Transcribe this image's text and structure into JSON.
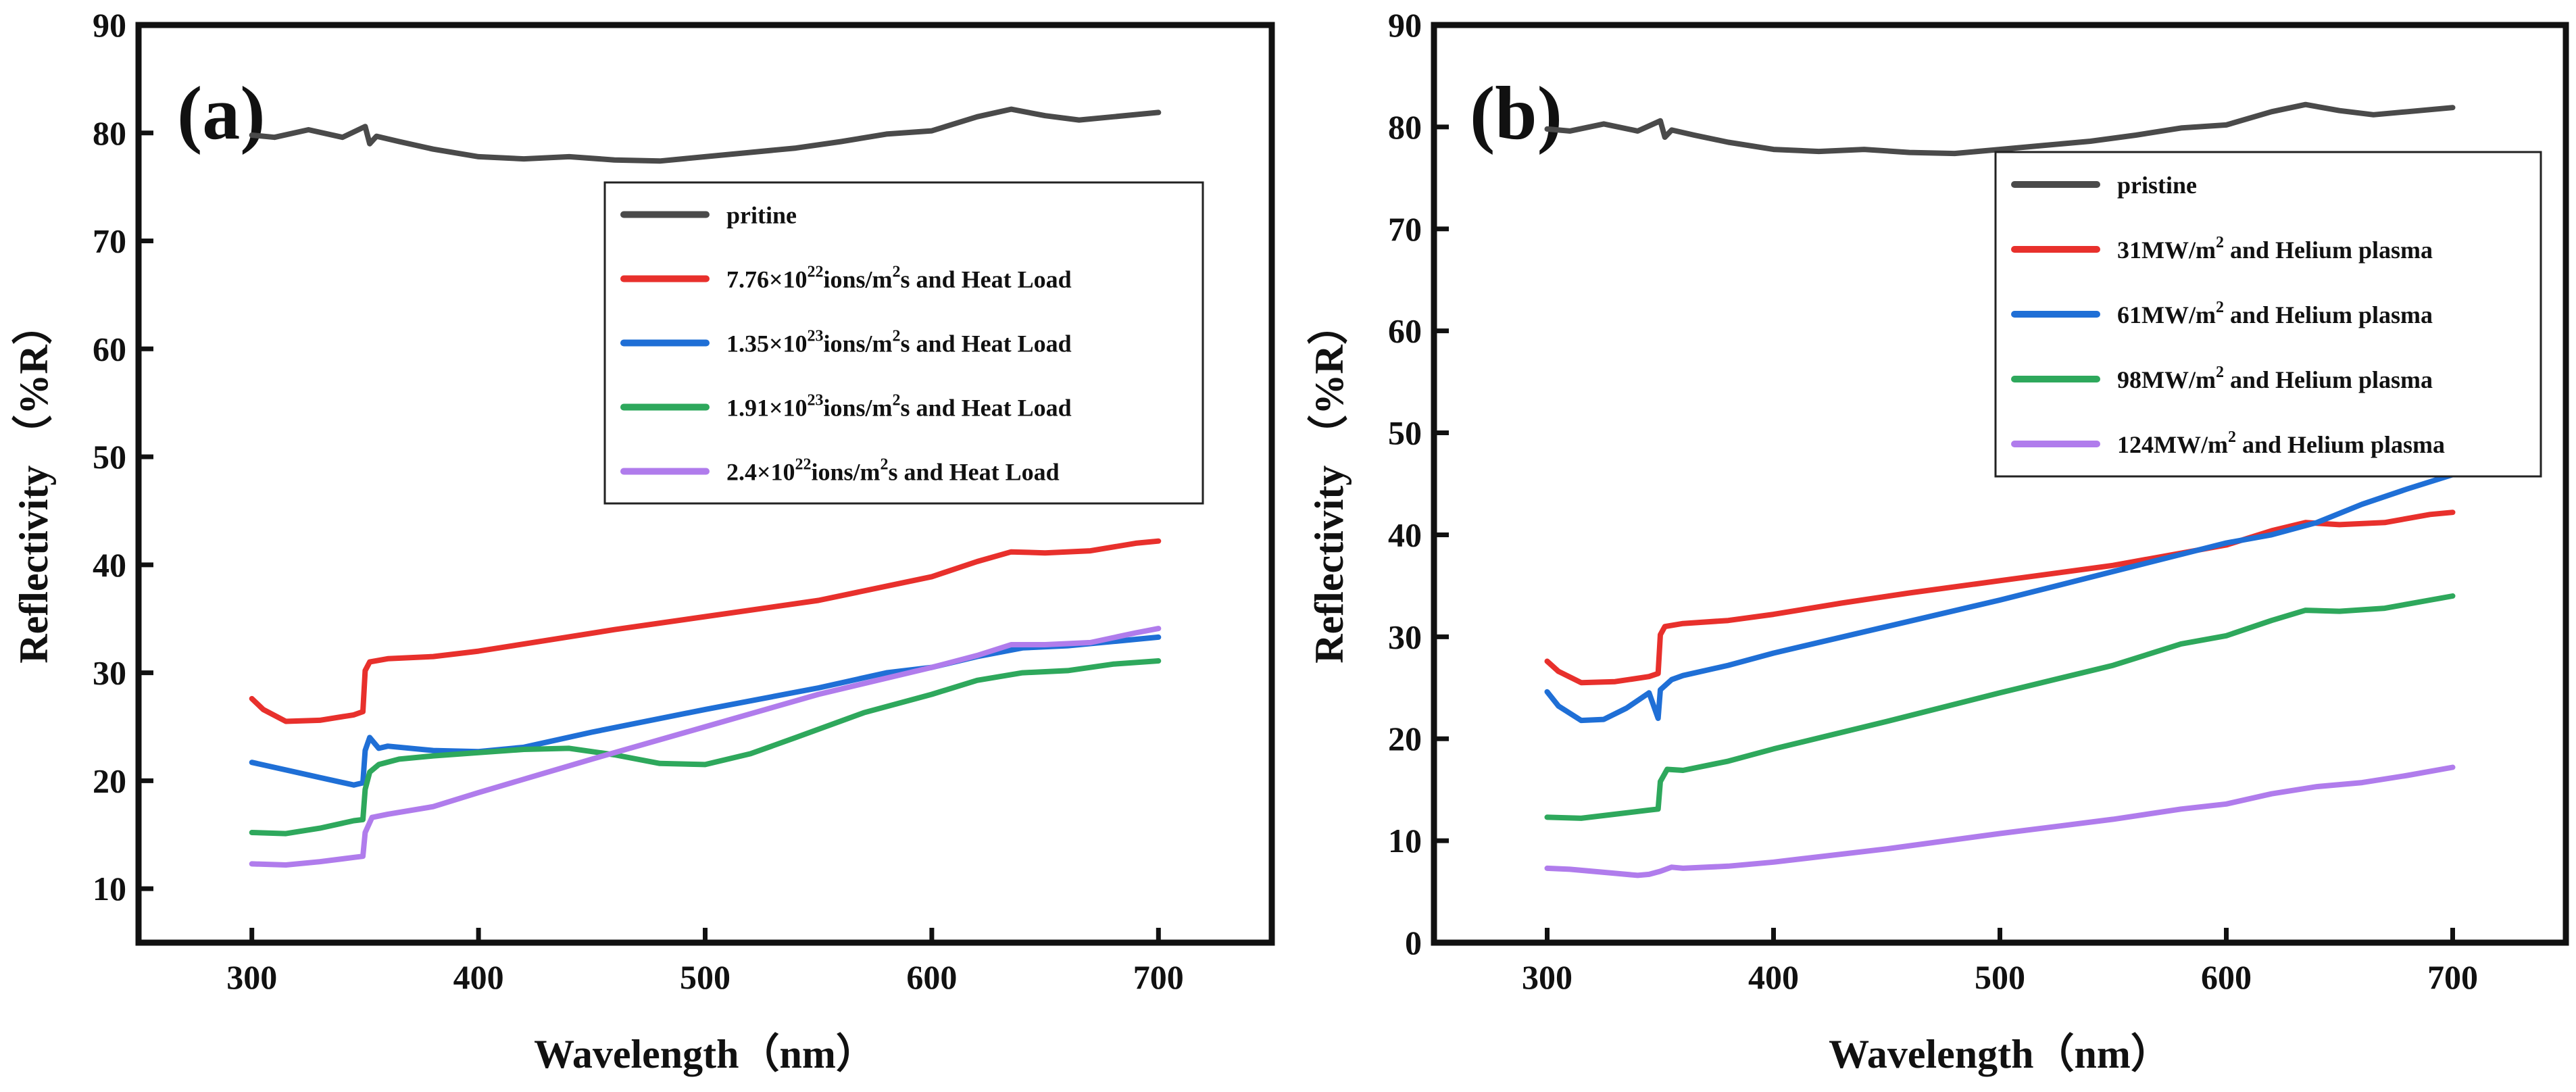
{
  "chart_data": [
    {
      "panel": "(a)",
      "type": "line",
      "xlabel": "Wavelength（nm）",
      "ylabel": "Reflectivity （%R）",
      "xlim": [
        250,
        750
      ],
      "ylim": [
        5,
        90
      ],
      "xticks": [
        "300",
        "400",
        "500",
        "600",
        "700"
      ],
      "yticks": [
        "10",
        "20",
        "30",
        "40",
        "50",
        "60",
        "70",
        "80",
        "90"
      ],
      "legend_position": "top-right",
      "series": [
        {
          "name": "pritine",
          "legend": {
            "pre": "pritine",
            "sup": "",
            "mid": "",
            "sup2": "",
            "post": ""
          },
          "color": "#4a4a4a",
          "points": [
            [
              300,
              79.8
            ],
            [
              310,
              79.6
            ],
            [
              325,
              80.3
            ],
            [
              340,
              79.6
            ],
            [
              350,
              80.6
            ],
            [
              352,
              79.0
            ],
            [
              355,
              79.7
            ],
            [
              365,
              79.2
            ],
            [
              380,
              78.5
            ],
            [
              400,
              77.8
            ],
            [
              420,
              77.6
            ],
            [
              440,
              77.8
            ],
            [
              460,
              77.5
            ],
            [
              480,
              77.4
            ],
            [
              500,
              77.8
            ],
            [
              520,
              78.2
            ],
            [
              540,
              78.6
            ],
            [
              560,
              79.2
            ],
            [
              580,
              79.9
            ],
            [
              600,
              80.2
            ],
            [
              620,
              81.5
            ],
            [
              635,
              82.2
            ],
            [
              650,
              81.6
            ],
            [
              665,
              81.2
            ],
            [
              680,
              81.5
            ],
            [
              700,
              81.9
            ]
          ]
        },
        {
          "name": "7.76×10²²ions/m²s and Heat Load",
          "legend": {
            "pre": "7.76×10",
            "sup": "22",
            "mid": "ions/m",
            "sup2": "2",
            "post": "s and Heat Load"
          },
          "color": "#e8302c",
          "points": [
            [
              300,
              27.6
            ],
            [
              305,
              26.6
            ],
            [
              315,
              25.5
            ],
            [
              330,
              25.6
            ],
            [
              345,
              26.1
            ],
            [
              349,
              26.4
            ],
            [
              350,
              30.2
            ],
            [
              352,
              31.0
            ],
            [
              360,
              31.3
            ],
            [
              380,
              31.5
            ],
            [
              400,
              32.0
            ],
            [
              430,
              33.0
            ],
            [
              460,
              34.0
            ],
            [
              500,
              35.2
            ],
            [
              550,
              36.7
            ],
            [
              600,
              38.9
            ],
            [
              620,
              40.3
            ],
            [
              635,
              41.2
            ],
            [
              650,
              41.1
            ],
            [
              670,
              41.3
            ],
            [
              690,
              42.0
            ],
            [
              700,
              42.2
            ]
          ]
        },
        {
          "name": "1.35×10²³ions/m²s and Heat Load",
          "legend": {
            "pre": "1.35×10",
            "sup": "23",
            "mid": "ions/m",
            "sup2": "2",
            "post": "s and Heat Load"
          },
          "color": "#1f6fd6",
          "points": [
            [
              300,
              21.7
            ],
            [
              315,
              21.0
            ],
            [
              330,
              20.3
            ],
            [
              345,
              19.6
            ],
            [
              349,
              19.8
            ],
            [
              350,
              22.8
            ],
            [
              352,
              24.0
            ],
            [
              356,
              23.0
            ],
            [
              360,
              23.2
            ],
            [
              380,
              22.8
            ],
            [
              400,
              22.7
            ],
            [
              420,
              23.1
            ],
            [
              450,
              24.5
            ],
            [
              500,
              26.6
            ],
            [
              550,
              28.6
            ],
            [
              580,
              30.0
            ],
            [
              600,
              30.5
            ],
            [
              620,
              31.5
            ],
            [
              640,
              32.3
            ],
            [
              660,
              32.5
            ],
            [
              680,
              32.9
            ],
            [
              700,
              33.3
            ]
          ]
        },
        {
          "name": "1.91×10²³ions/m²s and Heat Load",
          "legend": {
            "pre": "1.91×10",
            "sup": "23",
            "mid": "ions/m",
            "sup2": "2",
            "post": "s and Heat Load"
          },
          "color": "#2ea85c",
          "points": [
            [
              300,
              15.2
            ],
            [
              315,
              15.1
            ],
            [
              330,
              15.6
            ],
            [
              345,
              16.3
            ],
            [
              349,
              16.4
            ],
            [
              350,
              19.2
            ],
            [
              352,
              20.8
            ],
            [
              356,
              21.5
            ],
            [
              365,
              22.0
            ],
            [
              380,
              22.3
            ],
            [
              400,
              22.6
            ],
            [
              420,
              22.9
            ],
            [
              440,
              23.0
            ],
            [
              460,
              22.4
            ],
            [
              480,
              21.6
            ],
            [
              500,
              21.5
            ],
            [
              520,
              22.5
            ],
            [
              540,
              24.0
            ],
            [
              570,
              26.3
            ],
            [
              600,
              28.0
            ],
            [
              620,
              29.3
            ],
            [
              640,
              30.0
            ],
            [
              660,
              30.2
            ],
            [
              680,
              30.8
            ],
            [
              700,
              31.1
            ]
          ]
        },
        {
          "name": "2.4×10²²ions/m²s and Heat Load",
          "legend": {
            "pre": "2.4×10",
            "sup": "22",
            "mid": "ions/m",
            "sup2": "2",
            "post": "s and Heat Load"
          },
          "color": "#b07cec",
          "points": [
            [
              300,
              12.3
            ],
            [
              315,
              12.2
            ],
            [
              330,
              12.5
            ],
            [
              345,
              12.9
            ],
            [
              349,
              13.0
            ],
            [
              350,
              15.2
            ],
            [
              353,
              16.6
            ],
            [
              360,
              16.9
            ],
            [
              380,
              17.6
            ],
            [
              400,
              18.9
            ],
            [
              450,
              22.0
            ],
            [
              500,
              25.0
            ],
            [
              550,
              28.0
            ],
            [
              600,
              30.5
            ],
            [
              620,
              31.6
            ],
            [
              635,
              32.6
            ],
            [
              650,
              32.6
            ],
            [
              670,
              32.8
            ],
            [
              690,
              33.7
            ],
            [
              700,
              34.1
            ]
          ]
        }
      ]
    },
    {
      "panel": "(b)",
      "type": "line",
      "xlabel": "Wavelength（nm）",
      "ylabel": "Reflectivity （%R）",
      "xlim": [
        250,
        750
      ],
      "ylim": [
        0,
        90
      ],
      "xticks": [
        "300",
        "400",
        "500",
        "600",
        "700"
      ],
      "yticks": [
        "0",
        "10",
        "20",
        "30",
        "40",
        "50",
        "60",
        "70",
        "80",
        "90"
      ],
      "legend_position": "top-right",
      "series": [
        {
          "name": "pristine",
          "legend": {
            "pre": "pristine",
            "sup": "",
            "mid": "",
            "sup2": "",
            "post": ""
          },
          "color": "#4a4a4a",
          "points": [
            [
              300,
              79.8
            ],
            [
              310,
              79.6
            ],
            [
              325,
              80.3
            ],
            [
              340,
              79.6
            ],
            [
              350,
              80.6
            ],
            [
              352,
              79.0
            ],
            [
              355,
              79.7
            ],
            [
              365,
              79.2
            ],
            [
              380,
              78.5
            ],
            [
              400,
              77.8
            ],
            [
              420,
              77.6
            ],
            [
              440,
              77.8
            ],
            [
              460,
              77.5
            ],
            [
              480,
              77.4
            ],
            [
              500,
              77.8
            ],
            [
              520,
              78.2
            ],
            [
              540,
              78.6
            ],
            [
              560,
              79.2
            ],
            [
              580,
              79.9
            ],
            [
              600,
              80.2
            ],
            [
              620,
              81.5
            ],
            [
              635,
              82.2
            ],
            [
              650,
              81.6
            ],
            [
              665,
              81.2
            ],
            [
              680,
              81.5
            ],
            [
              700,
              81.9
            ]
          ]
        },
        {
          "name": "31MW/m² and Helium plasma",
          "legend": {
            "pre": "31MW/m",
            "sup": "2",
            "mid": "",
            "sup2": "",
            "post": " and Helium plasma"
          },
          "color": "#e8302c",
          "points": [
            [
              300,
              27.6
            ],
            [
              305,
              26.6
            ],
            [
              315,
              25.5
            ],
            [
              330,
              25.6
            ],
            [
              345,
              26.1
            ],
            [
              349,
              26.4
            ],
            [
              350,
              30.2
            ],
            [
              352,
              31.0
            ],
            [
              360,
              31.3
            ],
            [
              380,
              31.6
            ],
            [
              400,
              32.2
            ],
            [
              430,
              33.3
            ],
            [
              460,
              34.3
            ],
            [
              500,
              35.5
            ],
            [
              550,
              37.0
            ],
            [
              600,
              39.0
            ],
            [
              620,
              40.4
            ],
            [
              635,
              41.2
            ],
            [
              650,
              41.0
            ],
            [
              670,
              41.2
            ],
            [
              690,
              42.0
            ],
            [
              700,
              42.2
            ]
          ]
        },
        {
          "name": "61MW/m² and Helium plasma",
          "legend": {
            "pre": "61MW/m",
            "sup": "2",
            "mid": "",
            "sup2": "",
            "post": " and Helium plasma"
          },
          "color": "#1f6fd6",
          "points": [
            [
              300,
              24.6
            ],
            [
              305,
              23.2
            ],
            [
              315,
              21.8
            ],
            [
              325,
              21.9
            ],
            [
              335,
              23.0
            ],
            [
              345,
              24.5
            ],
            [
              349,
              22.0
            ],
            [
              350,
              24.8
            ],
            [
              355,
              25.8
            ],
            [
              360,
              26.2
            ],
            [
              380,
              27.2
            ],
            [
              400,
              28.4
            ],
            [
              450,
              31.0
            ],
            [
              500,
              33.6
            ],
            [
              550,
              36.4
            ],
            [
              600,
              39.2
            ],
            [
              620,
              40.0
            ],
            [
              640,
              41.2
            ],
            [
              660,
              43.0
            ],
            [
              680,
              44.5
            ],
            [
              700,
              45.9
            ]
          ]
        },
        {
          "name": "98MW/m² and Helium plasma",
          "legend": {
            "pre": "98MW/m",
            "sup": "2",
            "mid": "",
            "sup2": "",
            "post": " and Helium plasma"
          },
          "color": "#2ea85c",
          "points": [
            [
              300,
              12.3
            ],
            [
              315,
              12.2
            ],
            [
              330,
              12.6
            ],
            [
              345,
              13.0
            ],
            [
              349,
              13.1
            ],
            [
              350,
              15.8
            ],
            [
              353,
              17.0
            ],
            [
              360,
              16.9
            ],
            [
              380,
              17.8
            ],
            [
              400,
              19.0
            ],
            [
              450,
              21.7
            ],
            [
              500,
              24.5
            ],
            [
              550,
              27.2
            ],
            [
              580,
              29.3
            ],
            [
              600,
              30.1
            ],
            [
              620,
              31.6
            ],
            [
              635,
              32.6
            ],
            [
              650,
              32.5
            ],
            [
              670,
              32.8
            ],
            [
              690,
              33.6
            ],
            [
              700,
              34.0
            ]
          ]
        },
        {
          "name": "124MW/m² and Helium plasma",
          "legend": {
            "pre": "124MW/m",
            "sup": "2",
            "mid": "",
            "sup2": "",
            "post": " and Helium plasma"
          },
          "color": "#b07cec",
          "points": [
            [
              300,
              7.3
            ],
            [
              310,
              7.2
            ],
            [
              320,
              7.0
            ],
            [
              330,
              6.8
            ],
            [
              340,
              6.6
            ],
            [
              345,
              6.7
            ],
            [
              350,
              7.0
            ],
            [
              355,
              7.4
            ],
            [
              360,
              7.3
            ],
            [
              380,
              7.5
            ],
            [
              400,
              7.9
            ],
            [
              450,
              9.2
            ],
            [
              500,
              10.7
            ],
            [
              550,
              12.1
            ],
            [
              580,
              13.1
            ],
            [
              600,
              13.6
            ],
            [
              620,
              14.6
            ],
            [
              640,
              15.3
            ],
            [
              660,
              15.7
            ],
            [
              680,
              16.4
            ],
            [
              700,
              17.2
            ]
          ]
        }
      ]
    }
  ]
}
